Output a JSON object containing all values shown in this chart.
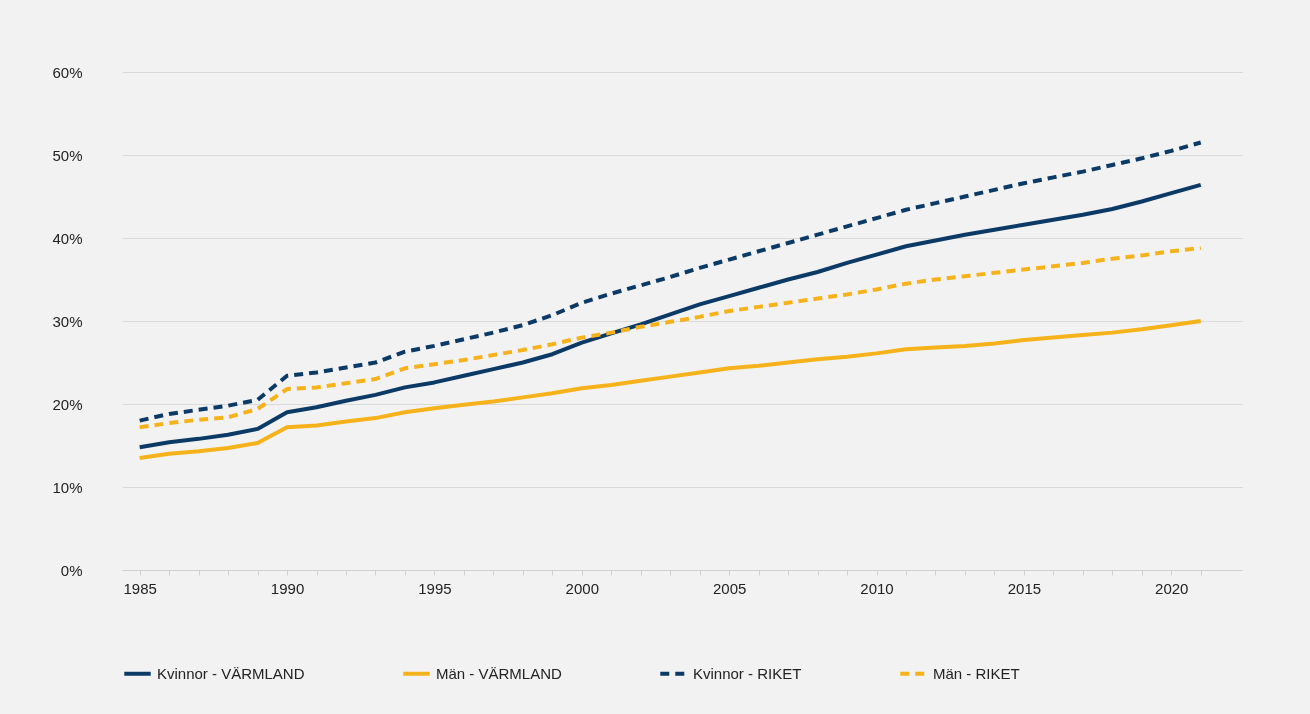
{
  "chart_data": {
    "type": "line",
    "x": [
      1985,
      1986,
      1987,
      1988,
      1989,
      1990,
      1991,
      1992,
      1993,
      1994,
      1995,
      1996,
      1997,
      1998,
      1999,
      2000,
      2001,
      2002,
      2003,
      2004,
      2005,
      2006,
      2007,
      2008,
      2009,
      2010,
      2011,
      2012,
      2013,
      2014,
      2015,
      2016,
      2017,
      2018,
      2019,
      2020,
      2021
    ],
    "xlim": [
      1984.4,
      2022.4
    ],
    "xticks": [
      1985,
      {
        "value": 1986,
        "label": null
      },
      {
        "value": 1987,
        "label": null
      },
      {
        "value": 1988,
        "label": null
      },
      {
        "value": 1989,
        "label": null
      },
      1990,
      {
        "value": 1991,
        "label": null
      },
      {
        "value": 1992,
        "label": null
      },
      {
        "value": 1993,
        "label": null
      },
      {
        "value": 1994,
        "label": null
      },
      1995,
      {
        "value": 1996,
        "label": null
      },
      {
        "value": 1997,
        "label": null
      },
      {
        "value": 1998,
        "label": null
      },
      {
        "value": 1999,
        "label": null
      },
      2000,
      {
        "value": 2001,
        "label": null
      },
      {
        "value": 2002,
        "label": null
      },
      {
        "value": 2003,
        "label": null
      },
      {
        "value": 2004,
        "label": null
      },
      2005,
      {
        "value": 2006,
        "label": null
      },
      {
        "value": 2007,
        "label": null
      },
      {
        "value": 2008,
        "label": null
      },
      {
        "value": 2009,
        "label": null
      },
      2010,
      {
        "value": 2011,
        "label": null
      },
      {
        "value": 2012,
        "label": null
      },
      {
        "value": 2013,
        "label": null
      },
      {
        "value": 2014,
        "label": null
      },
      2015,
      {
        "value": 2016,
        "label": null
      },
      {
        "value": 2017,
        "label": null
      },
      {
        "value": 2018,
        "label": null
      },
      {
        "value": 2019,
        "label": null
      },
      2020,
      {
        "value": 2021,
        "label": null
      }
    ],
    "ylim": [
      0,
      60
    ],
    "yticks": [
      {
        "value": 0,
        "label": "0%"
      },
      {
        "value": 10,
        "label": "10%"
      },
      {
        "value": 20,
        "label": "20%"
      },
      {
        "value": 30,
        "label": "30%"
      },
      {
        "value": 40,
        "label": "40%"
      },
      {
        "value": 50,
        "label": "50%"
      },
      {
        "value": 60,
        "label": "60%"
      }
    ],
    "grid": "y",
    "legend": "bottom",
    "series": [
      {
        "name": "Kvinnor - VÄRMLAND",
        "color": "#0b3a66",
        "line_style": "solid",
        "values": [
          14.8,
          15.4,
          15.8,
          16.3,
          17.0,
          19.0,
          19.6,
          20.4,
          21.1,
          22.0,
          22.6,
          23.4,
          24.2,
          25.0,
          26.0,
          27.4,
          28.5,
          29.6,
          30.8,
          32.0,
          33.0,
          34.0,
          35.0,
          35.9,
          37.0,
          38.0,
          39.0,
          39.7,
          40.4,
          41.0,
          41.6,
          42.2,
          42.8,
          43.5,
          44.4,
          45.4,
          46.4
        ]
      },
      {
        "name": "Män - VÄRMLAND",
        "color": "#f5b21b",
        "line_style": "solid",
        "values": [
          13.5,
          14.0,
          14.3,
          14.7,
          15.3,
          17.2,
          17.4,
          17.9,
          18.3,
          19.0,
          19.5,
          19.9,
          20.3,
          20.8,
          21.3,
          21.9,
          22.3,
          22.8,
          23.3,
          23.8,
          24.3,
          24.6,
          25.0,
          25.4,
          25.7,
          26.1,
          26.6,
          26.8,
          27.0,
          27.3,
          27.7,
          28.0,
          28.3,
          28.6,
          29.0,
          29.5,
          30.0
        ]
      },
      {
        "name": "Kvinnor - RIKET",
        "color": "#0b3a66",
        "line_style": "dashed",
        "values": [
          18.0,
          18.8,
          19.3,
          19.8,
          20.5,
          23.4,
          23.8,
          24.4,
          25.0,
          26.3,
          27.0,
          27.8,
          28.6,
          29.5,
          30.7,
          32.2,
          33.3,
          34.3,
          35.3,
          36.4,
          37.4,
          38.4,
          39.4,
          40.4,
          41.4,
          42.4,
          43.4,
          44.2,
          45.0,
          45.8,
          46.6,
          47.3,
          48.0,
          48.8,
          49.6,
          50.5,
          51.5
        ]
      },
      {
        "name": "Män - RIKET",
        "color": "#f5b21b",
        "line_style": "dashed",
        "values": [
          17.2,
          17.7,
          18.1,
          18.4,
          19.4,
          21.8,
          22.0,
          22.5,
          23.0,
          24.3,
          24.8,
          25.3,
          25.9,
          26.5,
          27.2,
          28.0,
          28.6,
          29.3,
          29.9,
          30.5,
          31.2,
          31.7,
          32.2,
          32.7,
          33.2,
          33.8,
          34.5,
          35.0,
          35.4,
          35.8,
          36.2,
          36.6,
          37.0,
          37.5,
          37.9,
          38.4,
          38.8
        ]
      }
    ]
  }
}
